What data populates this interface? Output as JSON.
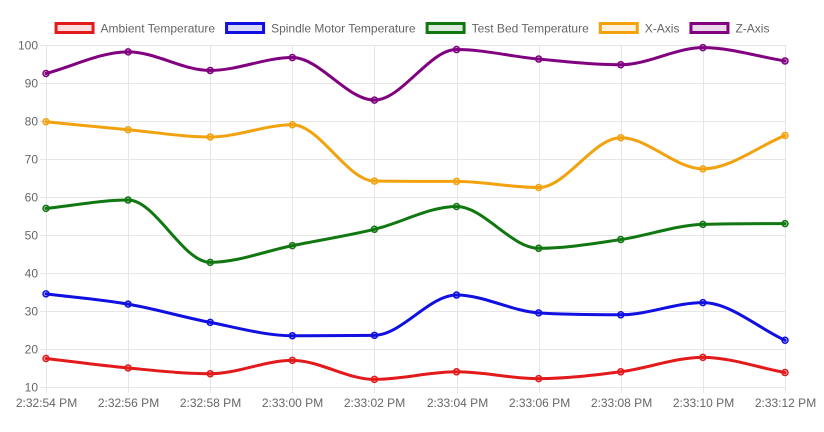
{
  "chart_data": {
    "type": "line",
    "title": "",
    "xlabel": "",
    "ylabel": "",
    "ylim": [
      10,
      100
    ],
    "yticks": [
      "10",
      "20",
      "30",
      "40",
      "50",
      "60",
      "70",
      "80",
      "90",
      "100"
    ],
    "grid": true,
    "legend_position": "top",
    "categories": [
      "2:32:54 PM",
      "2:32:56 PM",
      "2:32:58 PM",
      "2:33:00 PM",
      "2:33:02 PM",
      "2:33:04 PM",
      "2:33:06 PM",
      "2:33:08 PM",
      "2:33:10 PM",
      "2:33:12 PM"
    ],
    "series": [
      {
        "name": "Ambient Temperature",
        "color": "#e31a1c",
        "values": [
          17.5,
          15,
          13.5,
          17,
          12,
          14,
          12.2,
          14,
          17.8,
          13.8
        ]
      },
      {
        "name": "Spindle Motor Temperature",
        "color": "#1010e0",
        "values": [
          34.5,
          31.8,
          27,
          23.5,
          23.6,
          34.2,
          29.5,
          29,
          32.2,
          22.3
        ]
      },
      {
        "name": "Test Bed Temperature",
        "color": "#117711",
        "values": [
          57,
          59.2,
          42.8,
          47.2,
          51.5,
          57.5,
          46.5,
          48.8,
          52.8,
          53
        ]
      },
      {
        "name": "X-Axis",
        "color": "#f2a20f",
        "values": [
          79.8,
          77.7,
          75.8,
          79,
          64.2,
          64.1,
          62.5,
          75.6,
          67.4,
          76.2
        ]
      },
      {
        "name": "Z-Axis",
        "color": "#800080",
        "values": [
          92.5,
          98.2,
          93.3,
          96.7,
          85.5,
          98.8,
          96.3,
          94.8,
          99.3,
          95.8
        ]
      }
    ]
  }
}
